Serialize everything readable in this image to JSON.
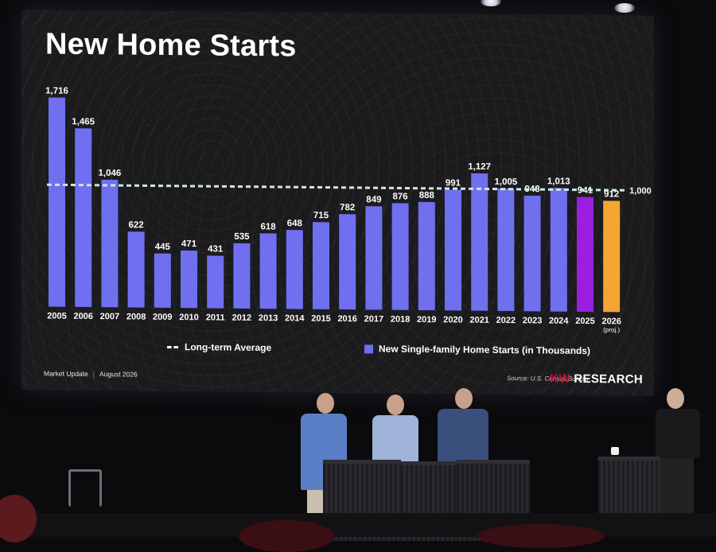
{
  "slide": {
    "title": "New Home Starts",
    "footer_left": "Market Update",
    "footer_date": "August 2026",
    "source": "Source: U.S. Census Bureau",
    "logo_kw": "KW",
    "logo_rest": " RESEARCH"
  },
  "colors": {
    "bar": "#6f6ff0",
    "bar_2025": "#9b1fe0",
    "bar_2026": "#f4a532",
    "average_line": "#cfe8e0"
  },
  "chart_data": {
    "type": "bar",
    "title": "New Home Starts",
    "categories": [
      "2005",
      "2006",
      "2007",
      "2008",
      "2009",
      "2010",
      "2011",
      "2012",
      "2013",
      "2014",
      "2015",
      "2016",
      "2017",
      "2018",
      "2019",
      "2020",
      "2021",
      "2022",
      "2023",
      "2024",
      "2025",
      "2026"
    ],
    "category_notes": {
      "2026": "(proj.)"
    },
    "series": [
      {
        "name": "New Single-family Home Starts (in Thousands)",
        "values": [
          1716,
          1465,
          1046,
          622,
          445,
          471,
          431,
          535,
          618,
          648,
          715,
          782,
          849,
          876,
          888,
          991,
          1127,
          1005,
          948,
          1013,
          941,
          912
        ],
        "labels": [
          "1,716",
          "1,465",
          "1,046",
          "622",
          "445",
          "471",
          "431",
          "535",
          "618",
          "648",
          "715",
          "782",
          "849",
          "876",
          "888",
          "991",
          "1,127",
          "1,005",
          "948",
          "1,013",
          "941",
          "912"
        ]
      }
    ],
    "reference_line": {
      "name": "Long-term Average",
      "value": 1000,
      "label": "1,000"
    },
    "legend": [
      {
        "label": "Long-term Average",
        "style": "dashed-line"
      },
      {
        "label": "New Single-family Home Starts (in Thousands)",
        "style": "swatch"
      }
    ],
    "legend_position": "bottom",
    "ylim": [
      0,
      1716
    ],
    "grid": false
  }
}
